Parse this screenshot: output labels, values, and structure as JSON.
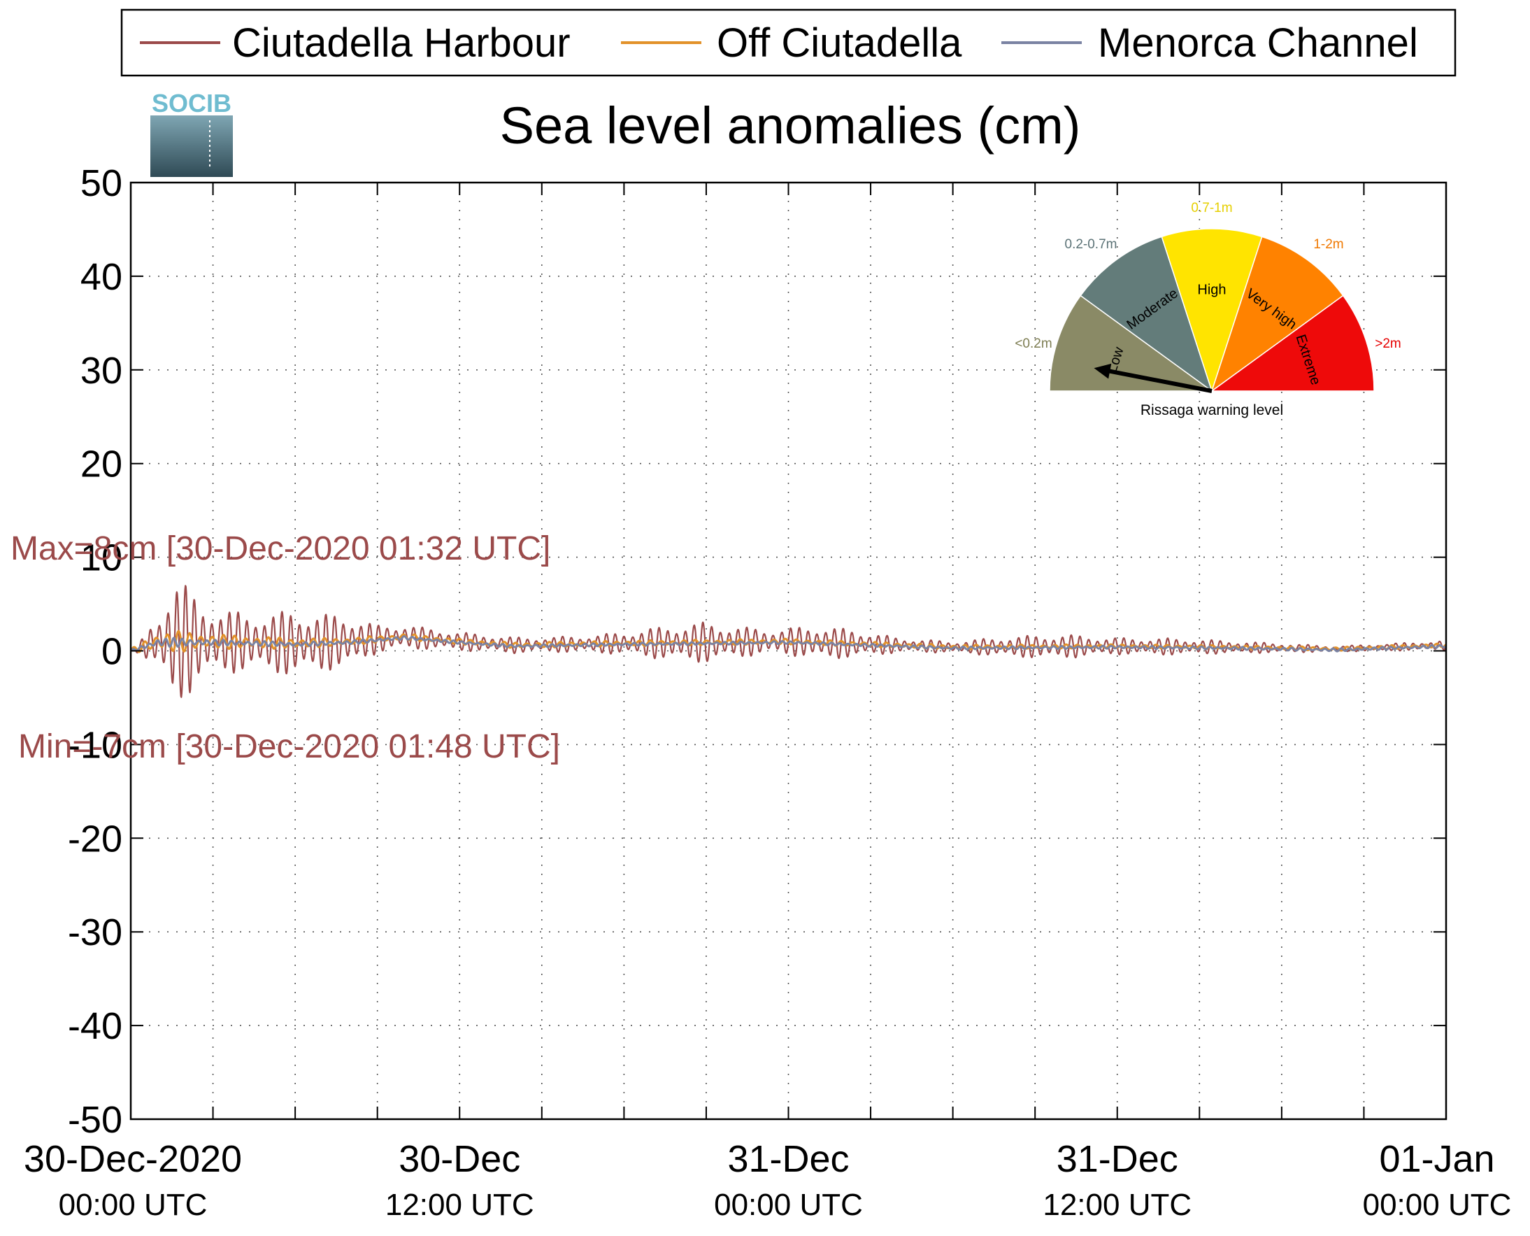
{
  "chart_data": {
    "type": "line",
    "title": "Sea level anomalies (cm)",
    "ylim": [
      -50,
      50
    ],
    "y_ticks": [
      50,
      40,
      30,
      20,
      10,
      0,
      -10,
      -20,
      -30,
      -40,
      -50
    ],
    "x_range_hours": [
      0,
      48
    ],
    "x_ticks": [
      {
        "hours": 0,
        "date": "30-Dec-2020",
        "time": "00:00 UTC"
      },
      {
        "hours": 12,
        "date": "30-Dec",
        "time": "12:00 UTC"
      },
      {
        "hours": 24,
        "date": "31-Dec",
        "time": "00:00 UTC"
      },
      {
        "hours": 36,
        "date": "31-Dec",
        "time": "12:00 UTC"
      },
      {
        "hours": 48,
        "date": "01-Jan",
        "time": "00:00 UTC"
      }
    ],
    "grid": true,
    "legend_position": "top",
    "series": [
      {
        "name": "Ciutadella Harbour",
        "color": "#9b4a4a",
        "envelope_hours": [
          0,
          0.3,
          0.6,
          1.0,
          1.53,
          1.8,
          2.5,
          3.5,
          4.3,
          5,
          6,
          7.2,
          8,
          9,
          10.5,
          12,
          13.5,
          15,
          16.5,
          18,
          19.5,
          21,
          22,
          23.5,
          25,
          26.5,
          28,
          30,
          32,
          34,
          36,
          38,
          40,
          42,
          44,
          46,
          48
        ],
        "envelope_amp": [
          0.3,
          0.5,
          1.5,
          2.5,
          7.5,
          7,
          4,
          3.5,
          3,
          3.2,
          3.5,
          3,
          2.8,
          1.5,
          1.2,
          1.0,
          0.9,
          0.8,
          0.9,
          1.2,
          1.8,
          2.2,
          1.7,
          1.3,
          1.8,
          1.5,
          0.8,
          0.6,
          1.1,
          1.3,
          0.9,
          0.9,
          0.7,
          0.5,
          0.3,
          0.4,
          0.5
        ],
        "baseline_hours": [
          0,
          1,
          3,
          6,
          8,
          10,
          12,
          14,
          18,
          24,
          30,
          36,
          40,
          44,
          48
        ],
        "baseline_cm": [
          0,
          1.0,
          1.0,
          0.8,
          1.0,
          1.5,
          1.0,
          0.6,
          0.8,
          1.0,
          0.4,
          0.5,
          0.4,
          0.2,
          0.6
        ]
      },
      {
        "name": "Off Ciutadella",
        "color": "#e2922a",
        "envelope_hours": [
          0,
          1,
          1.5,
          3,
          8,
          12,
          24,
          36,
          48
        ],
        "envelope_amp": [
          0.2,
          1.0,
          1.2,
          0.8,
          0.4,
          0.3,
          0.3,
          0.2,
          0.2
        ],
        "baseline_hours": [
          0,
          1,
          3,
          6,
          8,
          10,
          12,
          14,
          18,
          24,
          30,
          36,
          40,
          44,
          48
        ],
        "baseline_cm": [
          0,
          1.0,
          1.0,
          0.8,
          1.0,
          1.5,
          1.0,
          0.6,
          0.8,
          1.0,
          0.4,
          0.5,
          0.4,
          0.2,
          0.6
        ]
      },
      {
        "name": "Menorca Channel",
        "color": "#7a83a3",
        "envelope_hours": [
          0,
          1,
          1.5,
          3,
          8,
          12,
          48
        ],
        "envelope_amp": [
          0.1,
          0.4,
          0.5,
          0.3,
          0.2,
          0.15,
          0.15
        ],
        "baseline_hours": [
          0,
          1,
          3,
          6,
          8,
          10,
          12,
          14,
          18,
          24,
          30,
          36,
          40,
          44,
          48
        ],
        "baseline_cm": [
          0,
          0.9,
          0.9,
          0.7,
          0.9,
          1.4,
          0.9,
          0.5,
          0.7,
          0.9,
          0.3,
          0.4,
          0.3,
          0.1,
          0.5
        ]
      }
    ],
    "annotations": [
      {
        "name": "max",
        "text": "Max=8cm [30-Dec-2020 01:32 UTC]",
        "hours": 1.53,
        "value": 8
      },
      {
        "name": "min",
        "text": "Min=-7cm [30-Dec-2020 01:48 UTC]",
        "hours": 1.8,
        "value": -7
      }
    ]
  },
  "logo": {
    "text": "SOCIB"
  },
  "gauge": {
    "caption": "Rissaga warning level",
    "pointer_level": "Low",
    "segments": [
      {
        "label": "Low",
        "range": "<0.2m",
        "color": "#8a8a66",
        "range_color": "#7d7d52"
      },
      {
        "label": "Moderate",
        "range": "0.2-0.7m",
        "color": "#637c7a",
        "range_color": "#5b7276"
      },
      {
        "label": "High",
        "range": "0.7-1m",
        "color": "#ffe400",
        "range_color": "#e6cf00"
      },
      {
        "label": "Very high",
        "range": "1-2m",
        "color": "#ff8200",
        "range_color": "#f07800"
      },
      {
        "label": "Extreme",
        "range": ">2m",
        "color": "#ee0a0a",
        "range_color": "#e60000"
      }
    ]
  }
}
